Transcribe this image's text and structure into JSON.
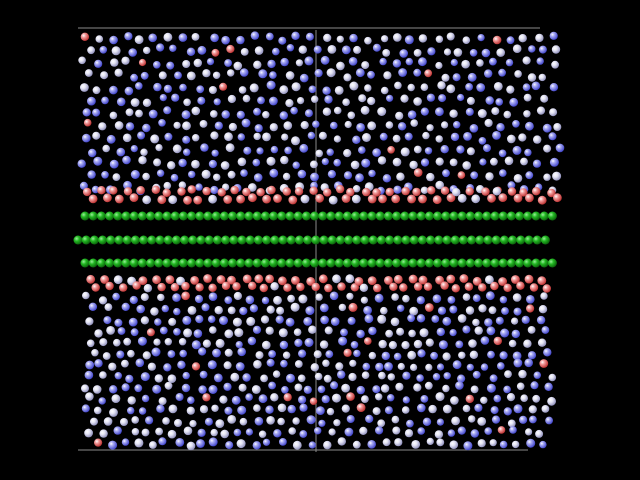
{
  "background_color": "#000000",
  "membrane": {
    "green_atom_color": "#1fb81f",
    "interface_color": "#e86a6a",
    "solvent_color_cool": "#6f73e8",
    "solvent_color_neutral": "#e8e8f2",
    "cell_edge_color": "#8a8a8a"
  }
}
